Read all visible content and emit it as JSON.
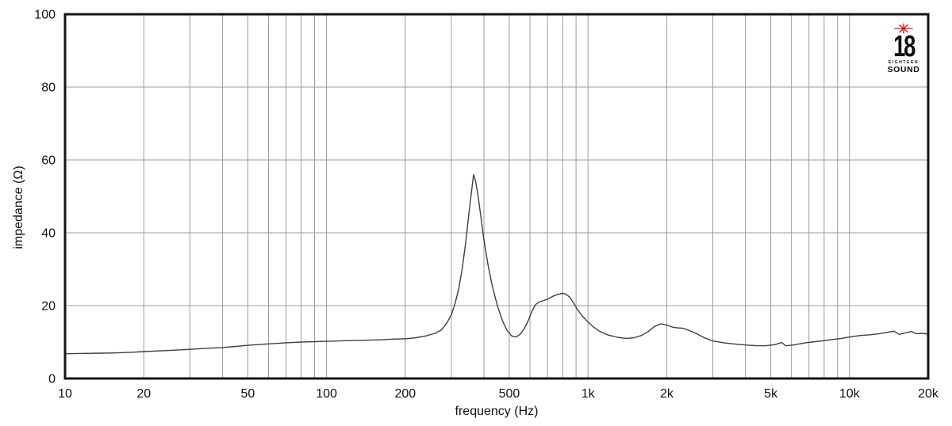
{
  "colors": {
    "background": "#ffffff",
    "curve": "#3f3f3f",
    "grid": "#9c9c9c",
    "frame": "#141414",
    "text": "#111111",
    "logo_star": "#e31010",
    "logo_text": "#0d0d0d"
  },
  "logo": {
    "number": "18",
    "name_top": "EIGHTEEN",
    "name_bottom": "SOUND"
  },
  "chart_data": {
    "type": "line",
    "title": "",
    "xlabel": "frequency (Hz)",
    "ylabel": "impedance (Ω)",
    "x_scale": "log",
    "xlim": [
      10,
      20000
    ],
    "ylim": [
      0,
      100
    ],
    "grid": true,
    "legend": "none",
    "x_ticks": [
      {
        "value": 10,
        "label": "10"
      },
      {
        "value": 20,
        "label": "20"
      },
      {
        "value": 50,
        "label": "50"
      },
      {
        "value": 100,
        "label": "100"
      },
      {
        "value": 200,
        "label": "200"
      },
      {
        "value": 500,
        "label": "500"
      },
      {
        "value": 1000,
        "label": "1k"
      },
      {
        "value": 2000,
        "label": "2k"
      },
      {
        "value": 5000,
        "label": "5k"
      },
      {
        "value": 10000,
        "label": "10k"
      },
      {
        "value": 20000,
        "label": "20k"
      }
    ],
    "y_ticks": [
      {
        "value": 0,
        "label": "0"
      },
      {
        "value": 20,
        "label": "20"
      },
      {
        "value": 40,
        "label": "40"
      },
      {
        "value": 60,
        "label": "60"
      },
      {
        "value": 80,
        "label": "80"
      },
      {
        "value": 100,
        "label": "100"
      }
    ],
    "series": [
      {
        "name": "impedance",
        "points": [
          [
            10,
            6.8
          ],
          [
            12,
            6.9
          ],
          [
            15,
            7.0
          ],
          [
            18,
            7.2
          ],
          [
            20,
            7.4
          ],
          [
            25,
            7.7
          ],
          [
            30,
            8.0
          ],
          [
            35,
            8.3
          ],
          [
            40,
            8.5
          ],
          [
            45,
            8.8
          ],
          [
            50,
            9.1
          ],
          [
            60,
            9.5
          ],
          [
            70,
            9.8
          ],
          [
            80,
            10.0
          ],
          [
            90,
            10.1
          ],
          [
            100,
            10.2
          ],
          [
            120,
            10.4
          ],
          [
            140,
            10.5
          ],
          [
            160,
            10.6
          ],
          [
            180,
            10.8
          ],
          [
            200,
            10.9
          ],
          [
            220,
            11.2
          ],
          [
            240,
            11.7
          ],
          [
            260,
            12.4
          ],
          [
            275,
            13.3
          ],
          [
            290,
            15.5
          ],
          [
            300,
            17.5
          ],
          [
            310,
            20.5
          ],
          [
            320,
            24.5
          ],
          [
            330,
            30
          ],
          [
            340,
            37
          ],
          [
            350,
            45
          ],
          [
            358,
            51
          ],
          [
            365,
            56
          ],
          [
            372,
            54
          ],
          [
            380,
            50
          ],
          [
            390,
            44
          ],
          [
            400,
            38
          ],
          [
            415,
            31
          ],
          [
            430,
            25.5
          ],
          [
            450,
            20
          ],
          [
            470,
            16
          ],
          [
            490,
            13.2
          ],
          [
            510,
            11.7
          ],
          [
            530,
            11.4
          ],
          [
            550,
            12.1
          ],
          [
            570,
            13.6
          ],
          [
            590,
            15.8
          ],
          [
            610,
            18.4
          ],
          [
            630,
            20.3
          ],
          [
            650,
            21.0
          ],
          [
            670,
            21.3
          ],
          [
            690,
            21.6
          ],
          [
            710,
            22.0
          ],
          [
            740,
            22.7
          ],
          [
            770,
            23.1
          ],
          [
            800,
            23.4
          ],
          [
            820,
            23.2
          ],
          [
            850,
            22.4
          ],
          [
            880,
            20.8
          ],
          [
            910,
            19.0
          ],
          [
            950,
            17.2
          ],
          [
            1000,
            15.5
          ],
          [
            1050,
            14.1
          ],
          [
            1100,
            13.1
          ],
          [
            1150,
            12.4
          ],
          [
            1200,
            11.9
          ],
          [
            1300,
            11.3
          ],
          [
            1400,
            11.0
          ],
          [
            1500,
            11.2
          ],
          [
            1600,
            11.8
          ],
          [
            1700,
            12.9
          ],
          [
            1800,
            14.3
          ],
          [
            1900,
            15.0
          ],
          [
            2000,
            14.7
          ],
          [
            2100,
            14.1
          ],
          [
            2200,
            13.9
          ],
          [
            2300,
            13.8
          ],
          [
            2400,
            13.4
          ],
          [
            2600,
            12.3
          ],
          [
            2800,
            11.1
          ],
          [
            3000,
            10.3
          ],
          [
            3300,
            9.8
          ],
          [
            3600,
            9.5
          ],
          [
            4000,
            9.2
          ],
          [
            4400,
            9.0
          ],
          [
            4800,
            9.0
          ],
          [
            5200,
            9.3
          ],
          [
            5500,
            9.9
          ],
          [
            5700,
            9.0
          ],
          [
            6000,
            9.1
          ],
          [
            6300,
            9.4
          ],
          [
            6800,
            9.8
          ],
          [
            7400,
            10.1
          ],
          [
            8000,
            10.4
          ],
          [
            8600,
            10.7
          ],
          [
            9300,
            11.0
          ],
          [
            10000,
            11.4
          ],
          [
            11000,
            11.8
          ],
          [
            12000,
            12.0
          ],
          [
            13000,
            12.3
          ],
          [
            14000,
            12.7
          ],
          [
            14800,
            13.0
          ],
          [
            15500,
            12.1
          ],
          [
            16300,
            12.5
          ],
          [
            17300,
            12.9
          ],
          [
            18000,
            12.3
          ],
          [
            19000,
            12.4
          ],
          [
            20000,
            12.2
          ]
        ]
      }
    ]
  }
}
